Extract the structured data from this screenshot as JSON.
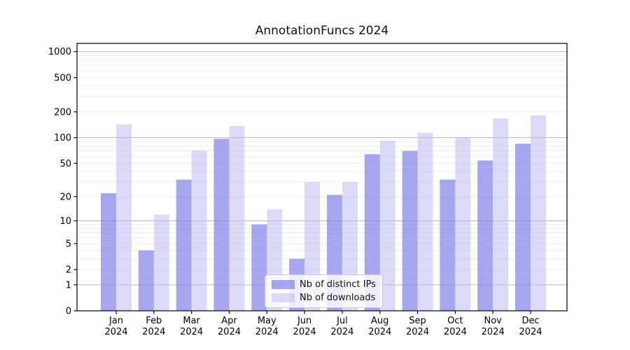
{
  "chart_data": {
    "type": "bar",
    "title": "AnnotationFuncs 2024",
    "months": [
      "Jan",
      "Feb",
      "Mar",
      "Apr",
      "May",
      "Jun",
      "Jul",
      "Aug",
      "Sep",
      "Oct",
      "Nov",
      "Dec"
    ],
    "year_label": "2024",
    "series": [
      {
        "name": "Nb of distinct IPs",
        "color_hex": "#a7a7ef",
        "fill": "rgba(120,120,230,0.65)",
        "values": [
          22,
          4,
          32,
          97,
          9,
          3,
          21,
          64,
          70,
          32,
          54,
          85
        ]
      },
      {
        "name": "Nb of downloads",
        "color_hex": "#dbdbf8",
        "fill": "rgba(190,190,240,0.55)",
        "values": [
          143,
          12,
          71,
          137,
          14,
          30,
          30,
          92,
          114,
          100,
          168,
          182
        ]
      }
    ],
    "y_scale": "log10(1+v)",
    "y_ticks": [
      0,
      1,
      2,
      5,
      10,
      20,
      50,
      100,
      200,
      500,
      1000
    ],
    "major_grid_ticks": [
      1,
      10,
      100,
      1000
    ],
    "ylim": [
      0,
      1250
    ],
    "grid": true,
    "legend_position": "lower center",
    "axis_color": "#000000",
    "major_grid_color": "#b8b8b8",
    "minor_grid_color": "#ececec"
  }
}
